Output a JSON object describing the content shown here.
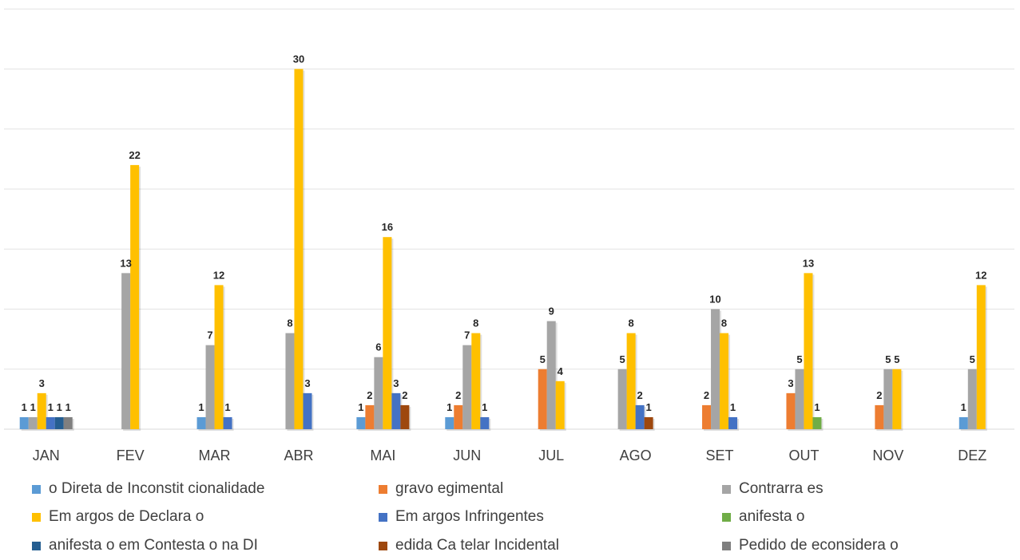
{
  "chart_data": {
    "type": "bar",
    "title": "",
    "xlabel": "",
    "ylabel": "",
    "ylim": [
      0,
      35
    ],
    "grid": true,
    "legend_position": "bottom",
    "categories": [
      "JAN",
      "FEV",
      "MAR",
      "ABR",
      "MAI",
      "JUN",
      "JUL",
      "AGO",
      "SET",
      "OUT",
      "NOV",
      "DEZ"
    ],
    "series": [
      {
        "name": "o Direta de Inconstit cionalidade",
        "color": "#5b9bd5",
        "values": [
          1,
          null,
          1,
          null,
          1,
          1,
          null,
          null,
          null,
          null,
          null,
          1
        ]
      },
      {
        "name": "gravo egimental",
        "color": "#ed7d31",
        "values": [
          null,
          null,
          null,
          null,
          2,
          2,
          5,
          null,
          2,
          3,
          2,
          null
        ]
      },
      {
        "name": "Contrarra es",
        "color": "#a5a5a5",
        "values": [
          1,
          13,
          7,
          8,
          6,
          7,
          9,
          5,
          10,
          5,
          5,
          5
        ]
      },
      {
        "name": "Em argos de Declara o",
        "color": "#ffc000",
        "values": [
          3,
          22,
          12,
          30,
          16,
          8,
          4,
          8,
          8,
          13,
          5,
          12
        ]
      },
      {
        "name": "Em argos Infringentes",
        "color": "#4472c4",
        "values": [
          1,
          null,
          1,
          3,
          3,
          1,
          null,
          2,
          1,
          null,
          null,
          null
        ]
      },
      {
        "name": "anifesta o",
        "color": "#70ad47",
        "values": [
          null,
          null,
          null,
          null,
          null,
          null,
          null,
          null,
          null,
          1,
          null,
          null
        ]
      },
      {
        "name": "anifesta o em Contesta o na DI",
        "color": "#255e91",
        "values": [
          1,
          null,
          null,
          null,
          null,
          null,
          null,
          null,
          null,
          null,
          null,
          null
        ]
      },
      {
        "name": "edida Ca telar Incidental",
        "color": "#9e480e",
        "values": [
          null,
          null,
          null,
          null,
          2,
          null,
          null,
          1,
          null,
          null,
          null,
          null
        ]
      },
      {
        "name": "Pedido de econsidera o",
        "color": "#7f7f7f",
        "values": [
          1,
          null,
          null,
          null,
          null,
          null,
          null,
          null,
          null,
          null,
          null,
          null
        ]
      }
    ]
  }
}
